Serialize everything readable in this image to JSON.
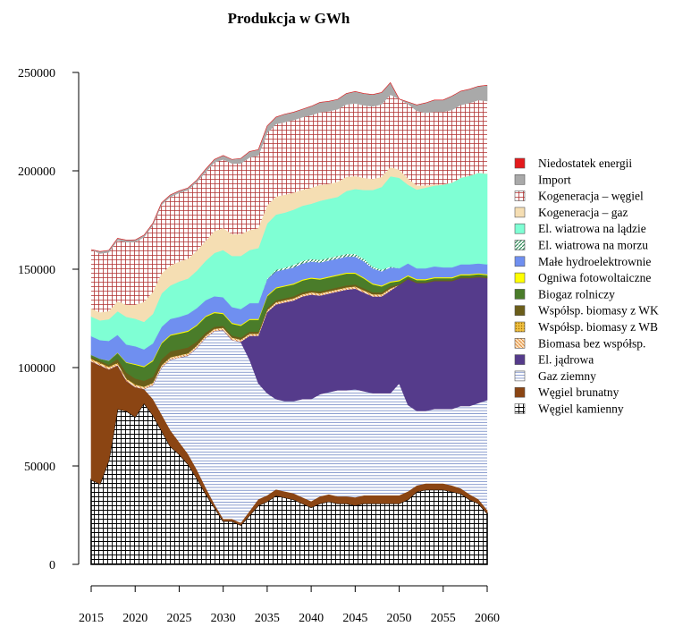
{
  "chart_data": {
    "type": "area",
    "title": "Produkcja w GWh",
    "xlabel": "",
    "ylabel": "",
    "xlim": [
      2015,
      2060
    ],
    "ylim": [
      0,
      250000
    ],
    "x_ticks": [
      2015,
      2020,
      2025,
      2030,
      2035,
      2040,
      2045,
      2050,
      2055,
      2060
    ],
    "y_ticks": [
      0,
      50000,
      100000,
      150000,
      200000,
      250000
    ],
    "legend_position": "right",
    "x": [
      2015,
      2016,
      2017,
      2018,
      2019,
      2020,
      2021,
      2022,
      2023,
      2024,
      2025,
      2026,
      2027,
      2028,
      2029,
      2030,
      2031,
      2032,
      2033,
      2034,
      2035,
      2036,
      2037,
      2038,
      2039,
      2040,
      2041,
      2042,
      2043,
      2044,
      2045,
      2046,
      2047,
      2048,
      2049,
      2050,
      2051,
      2052,
      2053,
      2054,
      2055,
      2056,
      2057,
      2058,
      2059,
      2060
    ],
    "series": [
      {
        "name": "Węgiel kamienny",
        "color": "#000000",
        "pattern": "grid",
        "values": [
          43000,
          41000,
          53000,
          79000,
          78000,
          75000,
          82000,
          76000,
          68000,
          60000,
          56000,
          51000,
          44000,
          36000,
          29000,
          22000,
          22000,
          20000,
          25000,
          30000,
          32000,
          35000,
          34000,
          33000,
          31000,
          29000,
          31000,
          32000,
          31000,
          31000,
          30000,
          31000,
          31000,
          31000,
          31000,
          31000,
          33000,
          37000,
          38000,
          38000,
          38000,
          37000,
          36000,
          33000,
          31000,
          26000
        ]
      },
      {
        "name": "Węgiel brunatny",
        "color": "#8b4513",
        "pattern": "solid",
        "values": [
          60000,
          60000,
          46000,
          22000,
          15000,
          15000,
          7000,
          8000,
          8000,
          8000,
          6000,
          5000,
          4000,
          3000,
          1500,
          1000,
          1000,
          1000,
          2000,
          3000,
          3000,
          3000,
          3000,
          3000,
          3000,
          3000,
          3500,
          3500,
          3500,
          3500,
          4000,
          4000,
          4000,
          4000,
          4000,
          4000,
          4000,
          3000,
          3000,
          3000,
          3000,
          3000,
          2500,
          2500,
          2000,
          1500
        ]
      },
      {
        "name": "Gaz ziemny",
        "color": "#6495ed",
        "pattern": "hlines",
        "values": [
          0,
          0,
          0,
          0,
          0,
          0,
          0,
          7000,
          24000,
          36000,
          43000,
          50000,
          62000,
          76000,
          88000,
          96000,
          91000,
          92000,
          77000,
          59000,
          52000,
          46000,
          46000,
          47000,
          50000,
          52000,
          52000,
          52000,
          54000,
          54000,
          55000,
          53000,
          52000,
          52000,
          52000,
          57000,
          44000,
          38000,
          37000,
          38000,
          38000,
          39000,
          42000,
          45000,
          49000,
          56000
        ]
      },
      {
        "name": "El. jądrowa",
        "color": "#553b8b",
        "pattern": "solid",
        "values": [
          0,
          0,
          0,
          0,
          0,
          0,
          0,
          0,
          0,
          0,
          0,
          0,
          0,
          0,
          0,
          0,
          0,
          0,
          12000,
          24000,
          41000,
          48000,
          50000,
          51000,
          52000,
          53000,
          50000,
          50000,
          50000,
          51000,
          51000,
          50000,
          49000,
          49000,
          52000,
          50000,
          64000,
          65000,
          65000,
          65000,
          65000,
          65000,
          65000,
          65000,
          64000,
          62000
        ]
      },
      {
        "name": "Biomasa bez współsp.",
        "color": "#f4a460",
        "pattern": "diagonal",
        "values": [
          1000,
          1000,
          1000,
          1000,
          1000,
          1000,
          1000,
          1000,
          1000,
          1000,
          1000,
          1000,
          1000,
          1000,
          1000,
          1000,
          1000,
          1000,
          1000,
          1000,
          1000,
          1000,
          1000,
          1000,
          1000,
          1000,
          1000,
          1000,
          1000,
          1000,
          1000,
          1000,
          1000,
          1000,
          1000,
          0,
          0,
          0,
          0,
          0,
          0,
          0,
          0,
          0,
          0,
          0
        ]
      },
      {
        "name": "Współsp. biomasy z WB",
        "color": "#d4a017",
        "pattern": "dots",
        "values": [
          500,
          500,
          500,
          500,
          500,
          500,
          300,
          300,
          300,
          300,
          300,
          300,
          300,
          300,
          300,
          300,
          300,
          300,
          300,
          300,
          300,
          300,
          300,
          300,
          300,
          300,
          300,
          300,
          300,
          300,
          300,
          300,
          300,
          300,
          300,
          0,
          0,
          0,
          0,
          0,
          0,
          0,
          0,
          0,
          0,
          0
        ]
      },
      {
        "name": "Współsp. biomasy z WK",
        "color": "#6b5e1a",
        "pattern": "solid",
        "values": [
          1000,
          1000,
          1000,
          2000,
          3000,
          3000,
          3000,
          3000,
          3000,
          3000,
          3000,
          3000,
          2000,
          1500,
          1000,
          1000,
          1000,
          1000,
          1000,
          1000,
          1000,
          1000,
          1000,
          1000,
          1000,
          1000,
          1000,
          1000,
          1000,
          1000,
          1000,
          1000,
          1000,
          1000,
          1000,
          500,
          500,
          500,
          500,
          500,
          500,
          500,
          500,
          500,
          500,
          500
        ]
      },
      {
        "name": "Biogaz rolniczy",
        "color": "#4a7c2a",
        "pattern": "solid",
        "values": [
          1000,
          1000,
          2000,
          3000,
          5000,
          7000,
          7000,
          8000,
          8000,
          8000,
          8000,
          8000,
          8000,
          8000,
          7000,
          6000,
          6000,
          6000,
          6000,
          6000,
          6000,
          6000,
          6000,
          6000,
          6000,
          6000,
          6000,
          6000,
          6000,
          6000,
          5500,
          5000,
          4000,
          3000,
          2000,
          1500,
          1000,
          1000,
          1000,
          1000,
          1000,
          1000,
          1000,
          1000,
          1000,
          1000
        ]
      },
      {
        "name": "Ogniwa fotowoltaiczne",
        "color": "#ffff00",
        "pattern": "solid",
        "values": [
          0,
          0,
          100,
          200,
          300,
          400,
          500,
          500,
          500,
          500,
          500,
          500,
          500,
          500,
          500,
          500,
          500,
          500,
          500,
          500,
          500,
          500,
          500,
          500,
          500,
          500,
          500,
          500,
          500,
          500,
          500,
          500,
          500,
          500,
          500,
          500,
          500,
          500,
          500,
          500,
          500,
          500,
          500,
          500,
          500,
          500
        ]
      },
      {
        "name": "Małe hydroelektrownie",
        "color": "#6f8ff0",
        "pattern": "solid",
        "values": [
          9500,
          9500,
          10000,
          9000,
          9000,
          9000,
          8500,
          8500,
          8000,
          8000,
          8000,
          8500,
          8500,
          8000,
          8000,
          8000,
          8000,
          8000,
          8000,
          8000,
          8000,
          8000,
          8000,
          8000,
          8000,
          8000,
          8000,
          8000,
          8000,
          8000,
          8000,
          8000,
          7500,
          7000,
          7000,
          6000,
          6000,
          5500,
          5500,
          5500,
          5000,
          5000,
          5000,
          5000,
          5000,
          5000
        ]
      },
      {
        "name": "El. wiatrowa na morzu",
        "color": "#3cb371",
        "pattern": "diagonal",
        "values": [
          0,
          0,
          0,
          0,
          0,
          0,
          0,
          0,
          0,
          0,
          0,
          0,
          0,
          0,
          0,
          0,
          0,
          0,
          0,
          0,
          500,
          1000,
          1000,
          1500,
          1500,
          1500,
          1500,
          1500,
          1500,
          1500,
          1500,
          1500,
          1000,
          1000,
          500,
          0,
          0,
          0,
          0,
          0,
          0,
          0,
          0,
          0,
          0,
          0
        ]
      },
      {
        "name": "El. wiatrowa na lądzie",
        "color": "#7fffd4",
        "pattern": "solid",
        "values": [
          10000,
          10000,
          11000,
          12000,
          14000,
          14000,
          14000,
          15000,
          17000,
          17000,
          18000,
          18000,
          19000,
          20000,
          22000,
          24000,
          26000,
          27000,
          27000,
          28000,
          28000,
          28000,
          28000,
          28000,
          28000,
          28000,
          30000,
          30000,
          30000,
          32000,
          33000,
          35000,
          39000,
          42000,
          46000,
          46000,
          40000,
          40000,
          41000,
          41000,
          42000,
          43000,
          44000,
          45000,
          46000,
          46000
        ]
      },
      {
        "name": "Kogeneracja – gaz",
        "color": "#f5deb3",
        "pattern": "solid",
        "values": [
          4000,
          4000,
          4000,
          5000,
          6000,
          7000,
          10000,
          11000,
          10000,
          10000,
          10000,
          10000,
          10000,
          10000,
          11000,
          11000,
          11000,
          11000,
          10000,
          10000,
          9000,
          9000,
          9000,
          8500,
          8000,
          8000,
          8000,
          7500,
          7500,
          7000,
          6500,
          6000,
          5500,
          5000,
          4500,
          4000,
          3000,
          2000,
          1000,
          500,
          0,
          0,
          0,
          0,
          0,
          0
        ]
      },
      {
        "name": "Kogeneracja – węgiel",
        "color": "#b03030",
        "pattern": "grid-red",
        "values": [
          30000,
          30000,
          30000,
          31000,
          32000,
          32000,
          33000,
          34000,
          35000,
          35000,
          35000,
          35000,
          35000,
          35000,
          35000,
          35000,
          36000,
          36000,
          37000,
          37000,
          37000,
          37000,
          37000,
          37000,
          37000,
          37000,
          37000,
          37000,
          37000,
          37000,
          37000,
          37000,
          37000,
          37000,
          37000,
          36000,
          38000,
          38000,
          37000,
          37000,
          37000,
          37000,
          37000,
          37000,
          37000,
          37000
        ]
      },
      {
        "name": "Import",
        "color": "#a9a9a9",
        "pattern": "solid",
        "values": [
          0,
          1000,
          1000,
          1000,
          1000,
          1000,
          1000,
          1000,
          1000,
          1000,
          1000,
          1000,
          1000,
          1500,
          1500,
          2000,
          2000,
          2500,
          3000,
          3000,
          3500,
          3500,
          4000,
          4000,
          4000,
          4500,
          5000,
          5000,
          5000,
          5500,
          6000,
          6000,
          6000,
          6000,
          6000,
          0,
          1000,
          3000,
          5000,
          6000,
          6000,
          7000,
          7000,
          7000,
          7000,
          8000
        ]
      },
      {
        "name": "Niedostatek energii",
        "color": "#e41a1c",
        "pattern": "solid",
        "values": [
          0,
          0,
          0,
          0,
          0,
          0,
          0,
          0,
          0,
          0,
          0,
          0,
          0,
          0,
          0,
          0,
          0,
          0,
          0,
          0,
          0,
          0,
          0,
          0,
          0,
          0,
          0,
          0,
          0,
          0,
          0,
          0,
          0,
          0,
          0,
          0,
          0,
          0,
          0,
          0,
          0,
          0,
          0,
          0,
          0,
          0
        ]
      }
    ]
  }
}
